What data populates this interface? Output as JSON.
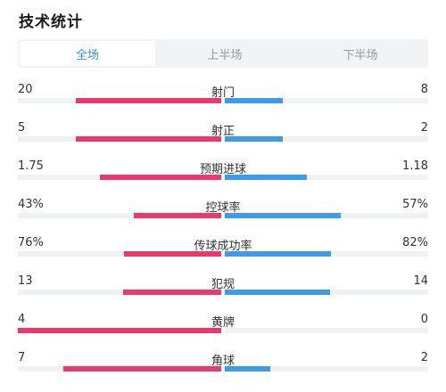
{
  "header": {
    "title": "技术统计"
  },
  "tabs": [
    {
      "label": "全场",
      "active": true
    },
    {
      "label": "上半场",
      "active": false
    },
    {
      "label": "下半场",
      "active": false
    }
  ],
  "colors": {
    "home": "#ea3a6b",
    "away": "#3d9be9",
    "track": "#f0f1f3",
    "tab_active": "#3b8fe0"
  },
  "stats": [
    {
      "label": "射门",
      "home": "20",
      "away": "8",
      "home_ratio": 0.714,
      "away_ratio": 0.286
    },
    {
      "label": "射正",
      "home": "5",
      "away": "2",
      "home_ratio": 0.714,
      "away_ratio": 0.286
    },
    {
      "label": "预期进球",
      "home": "1.75",
      "away": "1.18",
      "home_ratio": 0.597,
      "away_ratio": 0.403
    },
    {
      "label": "控球率",
      "home": "43%",
      "away": "57%",
      "home_ratio": 0.43,
      "away_ratio": 0.57
    },
    {
      "label": "传球成功率",
      "home": "76%",
      "away": "82%",
      "home_ratio": 0.48,
      "away_ratio": 0.52
    },
    {
      "label": "犯规",
      "home": "13",
      "away": "14",
      "home_ratio": 0.481,
      "away_ratio": 0.519
    },
    {
      "label": "黄牌",
      "home": "4",
      "away": "0",
      "home_ratio": 1.0,
      "away_ratio": 0.0
    },
    {
      "label": "角球",
      "home": "7",
      "away": "2",
      "home_ratio": 0.778,
      "away_ratio": 0.222
    }
  ]
}
